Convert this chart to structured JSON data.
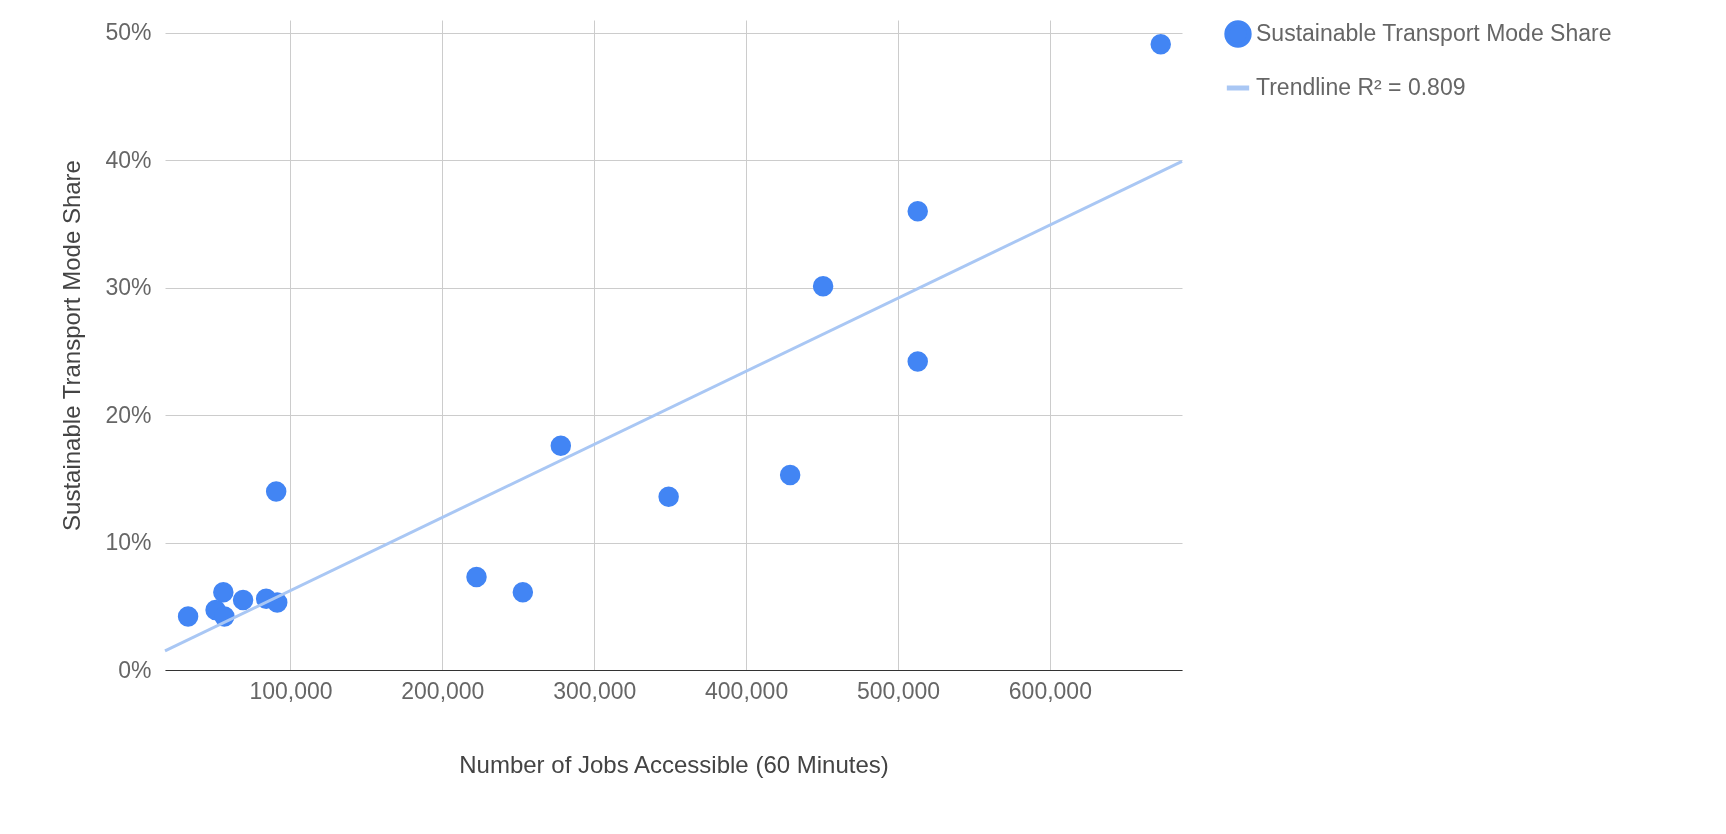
{
  "chart_data": {
    "type": "scatter",
    "xlabel": "Number of Jobs Accessible  (60 Minutes)",
    "ylabel": "Sustainable Transport Mode Share",
    "xlim": [
      17400,
      687000
    ],
    "xticks": [
      {
        "value": 100000,
        "label": "100,000"
      },
      {
        "value": 200000,
        "label": "200,000"
      },
      {
        "value": 300000,
        "label": "300,000"
      },
      {
        "value": 400000,
        "label": "400,000"
      },
      {
        "value": 500000,
        "label": "500,000"
      },
      {
        "value": 600000,
        "label": "600,000"
      }
    ],
    "ylim": [
      0,
      51
    ],
    "yticks": [
      {
        "value": 0,
        "label": "0%"
      },
      {
        "value": 10,
        "label": "10%"
      },
      {
        "value": 20,
        "label": "20%"
      },
      {
        "value": 30,
        "label": "30%"
      },
      {
        "value": 40,
        "label": "40%"
      },
      {
        "value": 50,
        "label": "50%"
      }
    ],
    "grid": true,
    "legend": "top right",
    "series": [
      {
        "name": "Sustainable Transport Mode Share",
        "color": "#4285f4",
        "marker": "circle",
        "x": [
          32600,
          50700,
          55800,
          56500,
          68800,
          84000,
          91300,
          90600,
          222500,
          253000,
          278000,
          349000,
          429000,
          450700,
          513000,
          513000,
          673000
        ],
        "values": [
          4.2,
          4.7,
          6.1,
          4.2,
          5.5,
          5.6,
          5.3,
          14.0,
          7.3,
          6.1,
          17.6,
          13.6,
          15.3,
          30.1,
          36.0,
          24.2,
          49.1
        ]
      },
      {
        "name": "Trendline  R² = 0.809",
        "color": "#a9c7f4",
        "type": "line",
        "marker": "none",
        "x": [
          17400,
          687000
        ],
        "values": [
          1.5,
          39.9
        ]
      }
    ]
  }
}
